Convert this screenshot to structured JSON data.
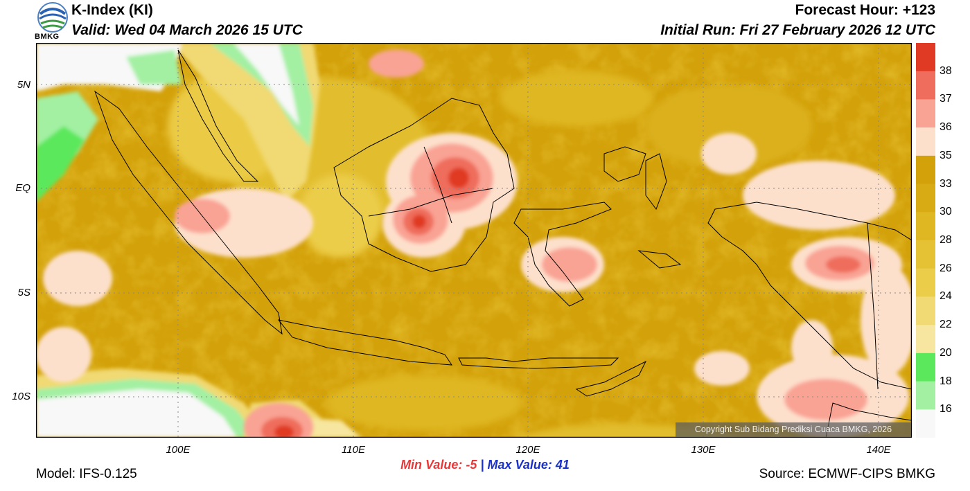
{
  "header": {
    "title": "K-Index (KI)",
    "valid": "Valid: Wed 04 March 2026 15 UTC",
    "forecast_hour": "Forecast Hour: +123",
    "initial_run": "Initial Run: Fri 27 February 2026 12 UTC",
    "logo_text": "BMKG"
  },
  "axes": {
    "lat_labels": [
      "5N",
      "EQ",
      "5S",
      "10S"
    ],
    "lon_labels": [
      "100E",
      "110E",
      "120E",
      "130E",
      "140E"
    ]
  },
  "colorbar": {
    "labels": [
      "38",
      "37",
      "36",
      "35",
      "33",
      "30",
      "28",
      "26",
      "24",
      "22",
      "20",
      "18",
      "16"
    ],
    "colors": [
      "#e03a24",
      "#ef6d5c",
      "#f9a394",
      "#fde0cc",
      "#d3a10a",
      "#d8aa14",
      "#dfb722",
      "#e5c233",
      "#eccd4a",
      "#f1d973",
      "#f7e69f",
      "#5ce85c",
      "#a3f0a3"
    ],
    "min_color": "#f8f8f8"
  },
  "footer": {
    "min_label": "Min Value:",
    "min_value": "-5",
    "separator": "|",
    "max_label": "Max Value:",
    "max_value": "41",
    "model": "Model: IFS-0.125",
    "source": "Source: ECMWF-CIPS BMKG",
    "copyright": "Copyright Sub Bidang Prediksi Cuaca BMKG, 2026"
  }
}
